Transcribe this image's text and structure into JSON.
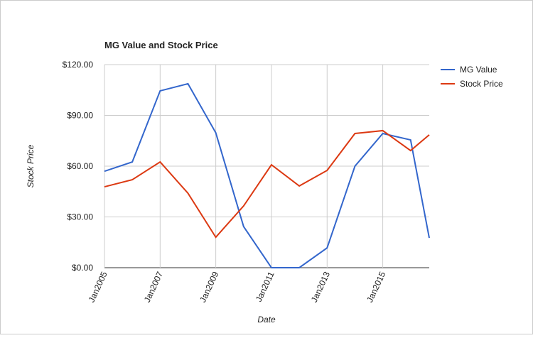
{
  "chart_data": {
    "type": "line",
    "title": "MG Value and Stock Price",
    "x_label": "Date",
    "y_label": "Stock Price",
    "x": [
      2005,
      2006,
      2007,
      2008,
      2009,
      2010,
      2011,
      2012,
      2013,
      2014,
      2015,
      2016,
      2016.67
    ],
    "xlim": [
      2005,
      2016.67
    ],
    "xticks": [
      {
        "value": 2005,
        "label": "Jan2005"
      },
      {
        "value": 2007,
        "label": "Jan2007"
      },
      {
        "value": 2009,
        "label": "Jan2009"
      },
      {
        "value": 2011,
        "label": "Jan2011"
      },
      {
        "value": 2013,
        "label": "Jan2013"
      },
      {
        "value": 2015,
        "label": "Jan2015"
      }
    ],
    "ylim": [
      0,
      120
    ],
    "yticks": [
      {
        "value": 0,
        "label": "$0.00"
      },
      {
        "value": 30,
        "label": "$30.00"
      },
      {
        "value": 60,
        "label": "$60.00"
      },
      {
        "value": 90,
        "label": "$90.00"
      },
      {
        "value": 120,
        "label": "$120.00"
      }
    ],
    "grid": true,
    "legend": "right",
    "series": [
      {
        "name": "MG Value",
        "color": "#3366cc",
        "values": [
          57,
          62.5,
          104.5,
          108.7,
          79.7,
          24.3,
          0,
          0,
          11.7,
          60,
          79.3,
          75.5,
          17.6
        ]
      },
      {
        "name": "Stock Price",
        "color": "#dc3912",
        "values": [
          47.8,
          52,
          62.5,
          44,
          18,
          36.5,
          60.8,
          48.3,
          57.5,
          79.3,
          81,
          69.2,
          78.5
        ]
      }
    ]
  }
}
